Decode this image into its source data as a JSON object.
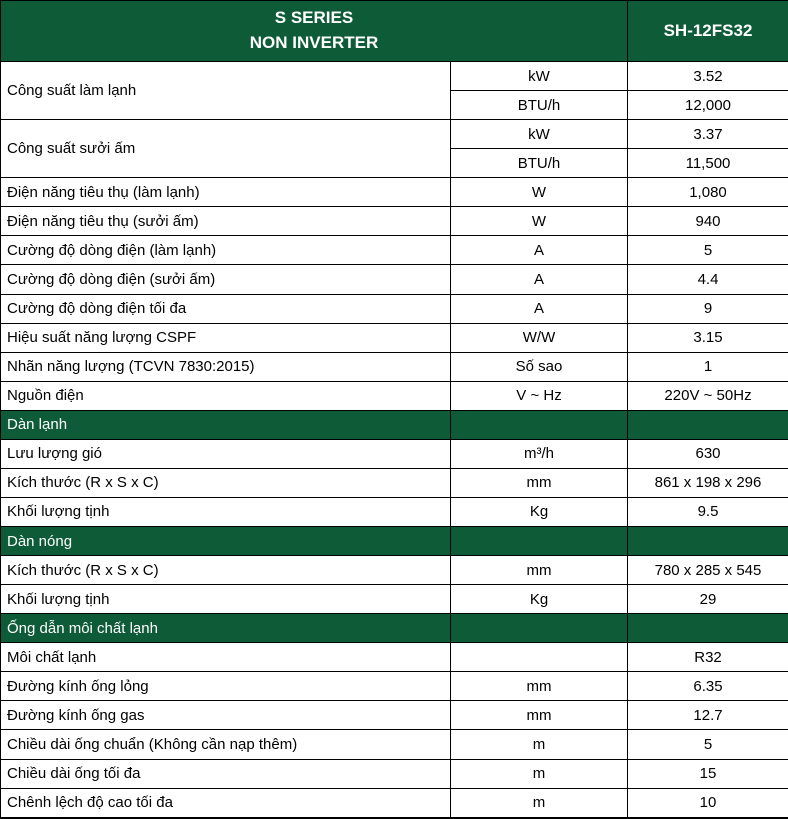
{
  "table": {
    "header": {
      "title_line1": "S SERIES",
      "title_line2": "NON INVERTER",
      "model": "SH-12FS32"
    },
    "colors": {
      "green": "#0E5B38",
      "border": "#000000",
      "header_text": "#FFFFFF",
      "body_text": "#000000",
      "row_bg": "#FFFFFF"
    },
    "rows": [
      {
        "kind": "group",
        "label": "Công suất làm lạnh",
        "sub": [
          {
            "unit": "kW",
            "value": "3.52"
          },
          {
            "unit": "BTU/h",
            "value": "12,000"
          }
        ]
      },
      {
        "kind": "group",
        "label": "Công suất sưởi ấm",
        "sub": [
          {
            "unit": "kW",
            "value": "3.37"
          },
          {
            "unit": "BTU/h",
            "value": "11,500"
          }
        ]
      },
      {
        "kind": "data",
        "label": "Điện năng tiêu thụ (làm lạnh)",
        "unit": "W",
        "value": "1,080"
      },
      {
        "kind": "data",
        "label": "Điện năng tiêu thụ (sưởi ấm)",
        "unit": "W",
        "value": "940"
      },
      {
        "kind": "data",
        "label": "Cường độ dòng điện (làm lạnh)",
        "unit": "A",
        "value": "5"
      },
      {
        "kind": "data",
        "label": "Cường độ dòng điện (sưởi ấm)",
        "unit": "A",
        "value": "4.4"
      },
      {
        "kind": "data",
        "label": "Cường độ dòng điện tối đa",
        "unit": "A",
        "value": "9"
      },
      {
        "kind": "data",
        "label": "Hiệu suất năng lượng CSPF",
        "unit": "W/W",
        "value": "3.15"
      },
      {
        "kind": "data",
        "label": "Nhãn năng lượng (TCVN 7830:2015)",
        "unit": "Số sao",
        "value": "1"
      },
      {
        "kind": "data",
        "label": "Nguồn điện",
        "unit": "V ~ Hz",
        "value": "220V ~ 50Hz"
      },
      {
        "kind": "section",
        "label": "Dàn lạnh"
      },
      {
        "kind": "data",
        "label": "Lưu lượng gió",
        "unit": "m³/h",
        "value": "630"
      },
      {
        "kind": "data",
        "label": "Kích thước (R x S x C)",
        "unit": "mm",
        "value": "861 x 198 x 296"
      },
      {
        "kind": "data",
        "label": "Khối lượng tịnh",
        "unit": "Kg",
        "value": "9.5"
      },
      {
        "kind": "section",
        "label": "Dàn nóng"
      },
      {
        "kind": "data",
        "label": "Kích thước (R x S x C)",
        "unit": "mm",
        "value": "780 x 285 x 545"
      },
      {
        "kind": "data",
        "label": "Khối lượng tịnh",
        "unit": "Kg",
        "value": "29"
      },
      {
        "kind": "section",
        "label": "Ống dẫn môi chất lạnh"
      },
      {
        "kind": "data",
        "label": "Môi chất lạnh",
        "unit": "",
        "value": "R32"
      },
      {
        "kind": "data",
        "label": "Đường kính ống lỏng",
        "unit": "mm",
        "value": "6.35"
      },
      {
        "kind": "data",
        "label": "Đường kính ống gas",
        "unit": "mm",
        "value": "12.7"
      },
      {
        "kind": "data",
        "label": "Chiều dài ống chuẩn (Không cần nạp thêm)",
        "unit": "m",
        "value": "5"
      },
      {
        "kind": "data",
        "label": "Chiều dài ống tối đa",
        "unit": "m",
        "value": "15"
      },
      {
        "kind": "data",
        "label": "Chênh lệch độ cao tối đa",
        "unit": "m",
        "value": "10"
      }
    ]
  }
}
